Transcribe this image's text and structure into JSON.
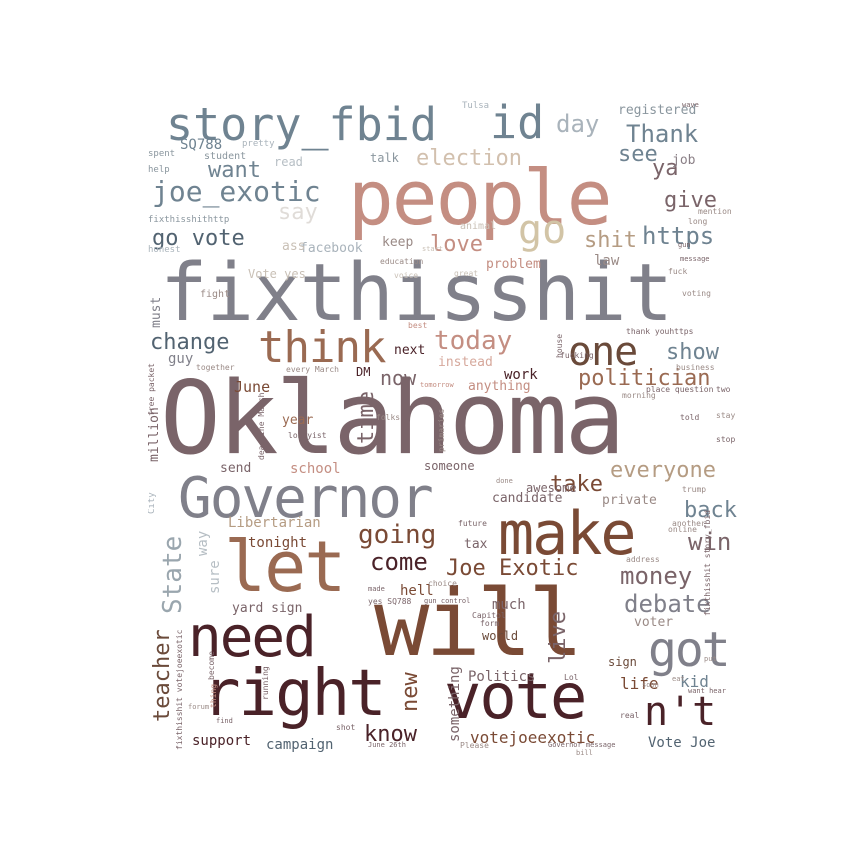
{
  "colors": {
    "slate": "#6f8391",
    "slate_dark": "#526371",
    "gray": "#80808a",
    "mauve": "#7a6469",
    "rose": "#c48e82",
    "brown": "#7a4a35",
    "brown_light": "#9a6a52",
    "maroon": "#4a2228",
    "tan": "#b59c83",
    "pale": "#c9c0b6",
    "background": "#ffffff"
  },
  "words": {
    "oklahoma": "Oklahoma",
    "fixthisshit": "fixthisshit",
    "people": "people",
    "story_fbid": "story_fbid",
    "id": "id",
    "governor": "Governor",
    "make": "make",
    "let": "let",
    "need": "need",
    "will": "will",
    "right": "right",
    "vote": "vote",
    "nt": "n't",
    "got": "got",
    "think": "think",
    "one": "one",
    "go": "go",
    "joe_exotic": "joe_exotic",
    "go_vote": "go vote",
    "day": "day",
    "thank": "Thank",
    "election": "election",
    "want": "want",
    "see": "see",
    "ya": "ya",
    "give": "give",
    "https": "https",
    "shit": "shit",
    "love": "love",
    "today": "today",
    "change": "change",
    "show": "show",
    "politician": "politician",
    "now": "now",
    "time": "time",
    "everyone": "everyone",
    "take": "take",
    "going": "going",
    "back": "back",
    "come": "come",
    "joe_exotic_name": "Joe Exotic",
    "win": "win",
    "money": "money",
    "debate": "debate",
    "state": "State",
    "teacher": "teacher",
    "live": "live",
    "new": "new",
    "know": "know",
    "votejoeexotic": "votejoeexotic",
    "vote_joe": "Vote Joe",
    "support": "support",
    "campaign": "campaign",
    "kid": "kid",
    "life": "life",
    "politics": "Politics",
    "sq788": "SQ788",
    "registered": "registered",
    "job": "job",
    "facebook": "facebook",
    "keep": "keep",
    "law": "law",
    "problem": "problem",
    "vote_yes": "Vote yes",
    "must": "must",
    "guy": "guy",
    "june": "June",
    "year": "year",
    "million": "million",
    "send": "send",
    "school": "school",
    "someone": "someone",
    "awesome": "awesome",
    "private": "private",
    "candidate": "candidate",
    "libertarian": "Libertarian",
    "tonight": "tonight",
    "way": "way",
    "sure": "sure",
    "yard_sign": "yard sign",
    "hell": "hell",
    "tax": "tax",
    "much": "much",
    "voter": "voter",
    "sign": "sign",
    "world": "world",
    "something": "something",
    "next": "next",
    "dm": "DM",
    "instead": "instead",
    "anything": "anything",
    "work": "work",
    "say": "say",
    "talk": "talk",
    "read": "read",
    "student": "student",
    "spent": "spent",
    "help": "help",
    "fixthisshithttp": "fixthisshithttp",
    "honest": "honest",
    "fight": "fight",
    "ass": "ass",
    "animal": "animal",
    "education": "education",
    "voice": "voice",
    "great": "great",
    "pretty": "pretty",
    "mention": "mention",
    "long": "long",
    "fuck": "fuck",
    "voting": "voting",
    "thank_you": "thank youhttps",
    "business": "business",
    "two": "two",
    "stay": "stay",
    "stop": "stop",
    "trump": "trump",
    "another": "another",
    "address": "address",
    "online": "online",
    "future": "future",
    "place_question": "place question",
    "morning": "morning",
    "told": "told",
    "primaries": "primaries",
    "deadline": "deadline March",
    "lobbyist": "lobbyist",
    "every_march": "every March",
    "folks": "folks",
    "tomorrow": "tomorrow",
    "best": "best",
    "fucking": "fucking",
    "house": "house",
    "together": "together",
    "city": "City",
    "free_packet": "free packet",
    "thing": "thing",
    "become": "become",
    "running": "running",
    "fixthisshit_votejoe": "fixthisshit votejoeexotic",
    "made": "made",
    "yes_sq788": "yes SQ788",
    "gun_control": "gun control",
    "choice": "choice",
    "capitol": "Capitol",
    "form": "form",
    "june_26th": "June 26th",
    "please": "Please",
    "governor_message": "Governor message",
    "real": "real",
    "want_hear": "want hear",
    "soon": "soon",
    "story_fbid_small": "fixthisshit story_fbid",
    "shot": "shot",
    "find": "find",
    "done": "done",
    "lol": "Lol",
    "bill": "bill",
    "tulsa": "Tulsa",
    "wave": "wave",
    "message": "message",
    "gun": "gun",
    "forum": "forum",
    "put": "put",
    "start": "start",
    "eat": "eat"
  }
}
